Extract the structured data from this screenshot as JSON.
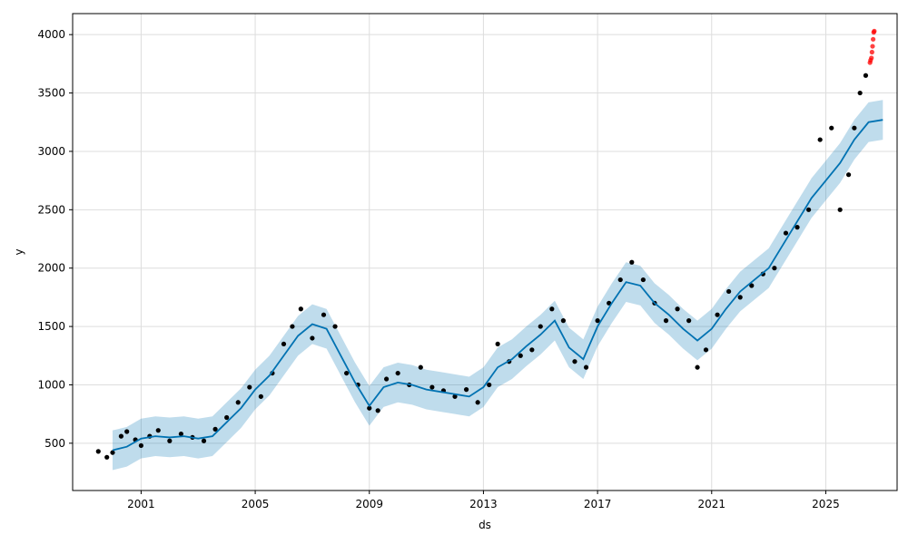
{
  "chart_data": {
    "type": "scatter",
    "title": "",
    "xlabel": "ds",
    "ylabel": "y",
    "xlim": [
      1998.6,
      2027.5
    ],
    "ylim": [
      95,
      4180
    ],
    "x_ticks": [
      2001,
      2005,
      2009,
      2013,
      2017,
      2021,
      2025
    ],
    "x_tick_labels": [
      "2001",
      "2005",
      "2009",
      "2013",
      "2017",
      "2021",
      "2025"
    ],
    "y_ticks": [
      500,
      1000,
      1500,
      2000,
      2500,
      3000,
      3500,
      4000
    ],
    "y_tick_labels": [
      "500",
      "1000",
      "1500",
      "2000",
      "2500",
      "3000",
      "3500",
      "4000"
    ],
    "grid": true,
    "colors": {
      "forecast_line": "#0072B2",
      "uncertainty_band": "#0072B2",
      "actual_points": "#000000",
      "recent_points": "#ff0000",
      "grid": "#dddddd"
    },
    "forecast": {
      "x": [
        2000.0,
        2000.5,
        2001.0,
        2001.5,
        2002.0,
        2002.5,
        2003.0,
        2003.5,
        2004.0,
        2004.5,
        2005.0,
        2005.5,
        2006.0,
        2006.5,
        2007.0,
        2007.5,
        2008.0,
        2008.5,
        2009.0,
        2009.5,
        2010.0,
        2010.5,
        2011.0,
        2011.5,
        2012.0,
        2012.5,
        2013.0,
        2013.5,
        2014.0,
        2014.5,
        2015.0,
        2015.5,
        2016.0,
        2016.5,
        2017.0,
        2017.5,
        2018.0,
        2018.5,
        2019.0,
        2019.5,
        2020.0,
        2020.5,
        2021.0,
        2021.5,
        2022.0,
        2022.5,
        2023.0,
        2023.5,
        2024.0,
        2024.5,
        2025.0,
        2025.5,
        2026.0,
        2026.5,
        2027.0
      ],
      "y": [
        440,
        470,
        540,
        560,
        550,
        560,
        540,
        560,
        680,
        800,
        960,
        1080,
        1250,
        1420,
        1520,
        1480,
        1250,
        1020,
        820,
        980,
        1020,
        1000,
        960,
        940,
        920,
        900,
        980,
        1150,
        1220,
        1330,
        1430,
        1550,
        1320,
        1220,
        1500,
        1700,
        1880,
        1850,
        1700,
        1600,
        1480,
        1380,
        1480,
        1650,
        1800,
        1900,
        2000,
        2200,
        2400,
        2600,
        2750,
        2900,
        3100,
        3250,
        3270
      ],
      "band_width": 170
    },
    "actuals": [
      {
        "x": 1999.5,
        "y": 430
      },
      {
        "x": 1999.8,
        "y": 380
      },
      {
        "x": 2000.0,
        "y": 420
      },
      {
        "x": 2000.3,
        "y": 560
      },
      {
        "x": 2000.5,
        "y": 600
      },
      {
        "x": 2000.8,
        "y": 530
      },
      {
        "x": 2001.0,
        "y": 480
      },
      {
        "x": 2001.3,
        "y": 560
      },
      {
        "x": 2001.6,
        "y": 610
      },
      {
        "x": 2002.0,
        "y": 520
      },
      {
        "x": 2002.4,
        "y": 580
      },
      {
        "x": 2002.8,
        "y": 550
      },
      {
        "x": 2003.2,
        "y": 520
      },
      {
        "x": 2003.6,
        "y": 620
      },
      {
        "x": 2004.0,
        "y": 720
      },
      {
        "x": 2004.4,
        "y": 850
      },
      {
        "x": 2004.8,
        "y": 980
      },
      {
        "x": 2005.2,
        "y": 900
      },
      {
        "x": 2005.6,
        "y": 1100
      },
      {
        "x": 2006.0,
        "y": 1350
      },
      {
        "x": 2006.3,
        "y": 1500
      },
      {
        "x": 2006.6,
        "y": 1650
      },
      {
        "x": 2007.0,
        "y": 1400
      },
      {
        "x": 2007.4,
        "y": 1600
      },
      {
        "x": 2007.8,
        "y": 1500
      },
      {
        "x": 2008.2,
        "y": 1100
      },
      {
        "x": 2008.6,
        "y": 1000
      },
      {
        "x": 2009.0,
        "y": 800
      },
      {
        "x": 2009.3,
        "y": 780
      },
      {
        "x": 2009.6,
        "y": 1050
      },
      {
        "x": 2010.0,
        "y": 1100
      },
      {
        "x": 2010.4,
        "y": 1000
      },
      {
        "x": 2010.8,
        "y": 1150
      },
      {
        "x": 2011.2,
        "y": 980
      },
      {
        "x": 2011.6,
        "y": 950
      },
      {
        "x": 2012.0,
        "y": 900
      },
      {
        "x": 2012.4,
        "y": 960
      },
      {
        "x": 2012.8,
        "y": 850
      },
      {
        "x": 2013.2,
        "y": 1000
      },
      {
        "x": 2013.5,
        "y": 1350
      },
      {
        "x": 2013.9,
        "y": 1200
      },
      {
        "x": 2014.3,
        "y": 1250
      },
      {
        "x": 2014.7,
        "y": 1300
      },
      {
        "x": 2015.0,
        "y": 1500
      },
      {
        "x": 2015.4,
        "y": 1650
      },
      {
        "x": 2015.8,
        "y": 1550
      },
      {
        "x": 2016.2,
        "y": 1200
      },
      {
        "x": 2016.6,
        "y": 1150
      },
      {
        "x": 2017.0,
        "y": 1550
      },
      {
        "x": 2017.4,
        "y": 1700
      },
      {
        "x": 2017.8,
        "y": 1900
      },
      {
        "x": 2018.2,
        "y": 2050
      },
      {
        "x": 2018.6,
        "y": 1900
      },
      {
        "x": 2019.0,
        "y": 1700
      },
      {
        "x": 2019.4,
        "y": 1550
      },
      {
        "x": 2019.8,
        "y": 1650
      },
      {
        "x": 2020.2,
        "y": 1550
      },
      {
        "x": 2020.5,
        "y": 1150
      },
      {
        "x": 2020.8,
        "y": 1300
      },
      {
        "x": 2021.2,
        "y": 1600
      },
      {
        "x": 2021.6,
        "y": 1800
      },
      {
        "x": 2022.0,
        "y": 1750
      },
      {
        "x": 2022.4,
        "y": 1850
      },
      {
        "x": 2022.8,
        "y": 1950
      },
      {
        "x": 2023.2,
        "y": 2000
      },
      {
        "x": 2023.6,
        "y": 2300
      },
      {
        "x": 2024.0,
        "y": 2350
      },
      {
        "x": 2024.4,
        "y": 2500
      },
      {
        "x": 2024.8,
        "y": 3100
      },
      {
        "x": 2025.2,
        "y": 3200
      },
      {
        "x": 2025.5,
        "y": 2500
      },
      {
        "x": 2025.8,
        "y": 2800
      },
      {
        "x": 2026.0,
        "y": 3200
      },
      {
        "x": 2026.2,
        "y": 3500
      },
      {
        "x": 2026.4,
        "y": 3650
      }
    ],
    "recent_actuals": [
      {
        "x": 2026.55,
        "y": 3760
      },
      {
        "x": 2026.57,
        "y": 3780
      },
      {
        "x": 2026.6,
        "y": 3800
      },
      {
        "x": 2026.62,
        "y": 3850
      },
      {
        "x": 2026.64,
        "y": 3900
      },
      {
        "x": 2026.66,
        "y": 3960
      },
      {
        "x": 2026.68,
        "y": 4020
      },
      {
        "x": 2026.7,
        "y": 4030
      }
    ]
  }
}
